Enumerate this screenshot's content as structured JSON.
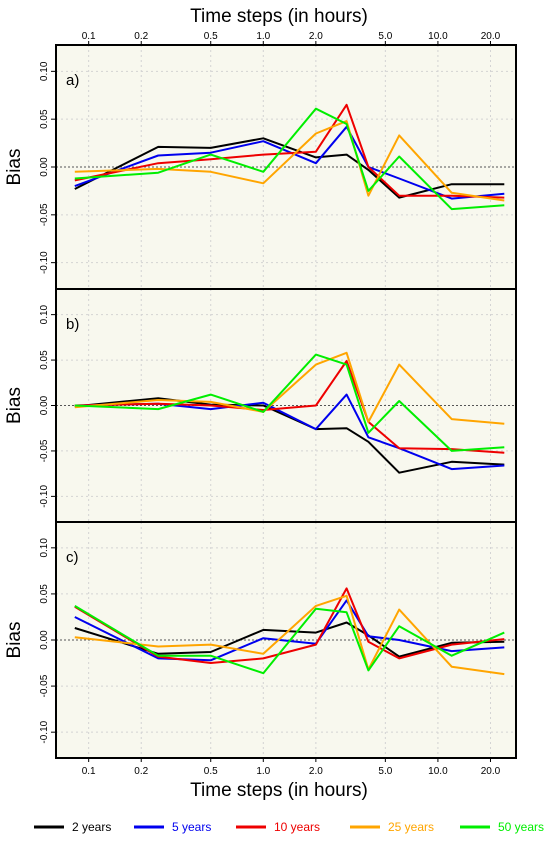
{
  "figure": {
    "top_axis_title": "Time steps (in hours)",
    "bottom_axis_title": "Time steps (in hours)",
    "ylabel": "Bias"
  },
  "colors": {
    "2 years": "#000000",
    "5 years": "#0000ee",
    "10 years": "#ee0000",
    "25 years": "#ffa500",
    "50 years": "#00ee00",
    "panel_bg": "#f8f8ee",
    "grid": "#d3d3d3"
  },
  "legend": [
    {
      "label": "2 years",
      "color": "#000000"
    },
    {
      "label": "5 years",
      "color": "#0000ee"
    },
    {
      "label": "10 years",
      "color": "#ee0000"
    },
    {
      "label": "25 years",
      "color": "#ffa500"
    },
    {
      "label": "50 years",
      "color": "#00ee00"
    }
  ],
  "chart_data": [
    {
      "type": "line",
      "panel": "a)",
      "xlabel": "Time steps (in hours)",
      "ylabel": "Bias",
      "x_scale": "log",
      "x_ticks": [
        0.1,
        0.2,
        0.5,
        1.0,
        2.0,
        5.0,
        10.0,
        20.0
      ],
      "x_tick_labels": [
        "0.1",
        "0.2",
        "0.5",
        "1.0",
        "2.0",
        "5.0",
        "10.0",
        "20.0"
      ],
      "y_ticks": [
        -0.1,
        -0.05,
        0.0,
        0.05,
        0.1
      ],
      "y_tick_labels": [
        "-0.10",
        "-0.05",
        "0.00",
        "0.05",
        "0.10"
      ],
      "ylim": [
        -0.115,
        0.115
      ],
      "grid": true,
      "x": [
        0.0833,
        0.25,
        0.5,
        1,
        2,
        3,
        4,
        6,
        12,
        24
      ],
      "series": [
        {
          "name": "2 years",
          "values": [
            -0.023,
            0.021,
            0.02,
            0.03,
            0.01,
            0.013,
            -0.003,
            -0.032,
            -0.018,
            -0.018
          ]
        },
        {
          "name": "5 years",
          "values": [
            -0.02,
            0.012,
            0.015,
            0.027,
            0.004,
            0.042,
            0.0,
            -0.012,
            -0.033,
            -0.028
          ]
        },
        {
          "name": "10 years",
          "values": [
            -0.014,
            0.004,
            0.008,
            0.013,
            0.016,
            0.065,
            0.0,
            -0.03,
            -0.03,
            -0.032
          ]
        },
        {
          "name": "25 years",
          "values": [
            -0.005,
            -0.002,
            -0.005,
            -0.017,
            0.035,
            0.048,
            -0.03,
            0.033,
            -0.027,
            -0.035
          ]
        },
        {
          "name": "50 years",
          "values": [
            -0.012,
            -0.006,
            0.013,
            -0.005,
            0.061,
            0.045,
            -0.025,
            0.011,
            -0.044,
            -0.04
          ]
        }
      ]
    },
    {
      "type": "line",
      "panel": "b)",
      "xlabel": "Time steps (in hours)",
      "ylabel": "Bias",
      "x_scale": "log",
      "x_ticks": [
        0.1,
        0.2,
        0.5,
        1.0,
        2.0,
        5.0,
        10.0,
        20.0
      ],
      "x_tick_labels": [
        "0.1",
        "0.2",
        "0.5",
        "1.0",
        "2.0",
        "5.0",
        "10.0",
        "20.0"
      ],
      "y_ticks": [
        -0.1,
        -0.05,
        0.0,
        0.05,
        0.1
      ],
      "y_tick_labels": [
        "-0.10",
        "-0.05",
        "0.00",
        "0.05",
        "0.10"
      ],
      "ylim": [
        -0.115,
        0.115
      ],
      "grid": true,
      "x": [
        0.0833,
        0.25,
        0.5,
        1,
        2,
        3,
        4,
        6,
        12,
        24
      ],
      "series": [
        {
          "name": "2 years",
          "values": [
            -0.001,
            0.008,
            0.001,
            0.0,
            -0.026,
            -0.025,
            -0.04,
            -0.074,
            -0.062,
            -0.065
          ]
        },
        {
          "name": "5 years",
          "values": [
            0.0,
            0.002,
            -0.004,
            0.003,
            -0.026,
            0.012,
            -0.035,
            -0.047,
            -0.07,
            -0.066
          ]
        },
        {
          "name": "10 years",
          "values": [
            0.0,
            0.002,
            0.0,
            -0.005,
            0.0,
            0.049,
            -0.018,
            -0.047,
            -0.048,
            -0.052
          ]
        },
        {
          "name": "25 years",
          "values": [
            -0.002,
            0.006,
            0.004,
            -0.007,
            0.045,
            0.058,
            -0.018,
            0.045,
            -0.015,
            -0.02
          ]
        },
        {
          "name": "50 years",
          "values": [
            0.0,
            -0.004,
            0.012,
            -0.007,
            0.056,
            0.045,
            -0.03,
            0.005,
            -0.05,
            -0.046
          ]
        }
      ]
    },
    {
      "type": "line",
      "panel": "c)",
      "xlabel": "Time steps (in hours)",
      "ylabel": "Bias",
      "x_scale": "log",
      "x_ticks": [
        0.1,
        0.2,
        0.5,
        1.0,
        2.0,
        5.0,
        10.0,
        20.0
      ],
      "x_tick_labels": [
        "0.1",
        "0.2",
        "0.5",
        "1.0",
        "2.0",
        "5.0",
        "10.0",
        "20.0"
      ],
      "y_ticks": [
        -0.1,
        -0.05,
        0.0,
        0.05,
        0.1
      ],
      "y_tick_labels": [
        "-0.10",
        "-0.05",
        "0.00",
        "0.05",
        "0.10"
      ],
      "ylim": [
        -0.115,
        0.115
      ],
      "grid": true,
      "x": [
        0.0833,
        0.25,
        0.5,
        1,
        2,
        3,
        4,
        6,
        12,
        24
      ],
      "series": [
        {
          "name": "2 years",
          "values": [
            0.013,
            -0.015,
            -0.013,
            0.011,
            0.008,
            0.019,
            0.005,
            -0.018,
            -0.003,
            -0.002
          ]
        },
        {
          "name": "5 years",
          "values": [
            0.025,
            -0.02,
            -0.022,
            0.002,
            -0.004,
            0.043,
            0.004,
            0.0,
            -0.012,
            -0.008
          ]
        },
        {
          "name": "10 years",
          "values": [
            0.036,
            -0.018,
            -0.025,
            -0.02,
            -0.005,
            0.056,
            -0.002,
            -0.02,
            -0.005,
            0.001
          ]
        },
        {
          "name": "25 years",
          "values": [
            0.003,
            -0.007,
            -0.005,
            -0.015,
            0.037,
            0.048,
            -0.032,
            0.033,
            -0.029,
            -0.037
          ]
        },
        {
          "name": "50 years",
          "values": [
            0.037,
            -0.017,
            -0.017,
            -0.036,
            0.034,
            0.03,
            -0.033,
            0.015,
            -0.017,
            0.008
          ]
        }
      ]
    }
  ]
}
